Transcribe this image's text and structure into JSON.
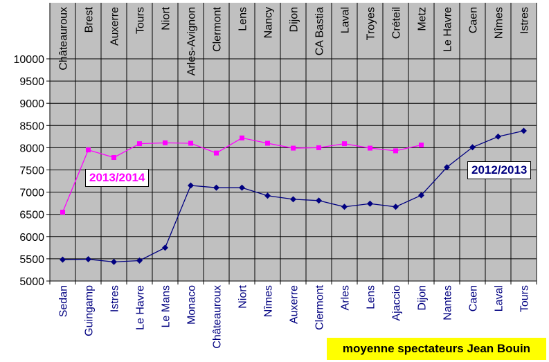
{
  "chart_data": {
    "type": "line",
    "ylim": [
      5000,
      10000
    ],
    "yticks": [
      5000,
      5500,
      6000,
      6500,
      7000,
      7500,
      8000,
      8500,
      9000,
      9500,
      10000
    ],
    "grid": true,
    "plot_bg_color": "#c0c0c0",
    "categories_top": [
      "Châteauroux",
      "Brest",
      "Auxerre",
      "Tours",
      "Niort",
      "Arles-Avignon",
      "Clermont",
      "Lens",
      "Nancy",
      "Dijon",
      "CA Bastia",
      "Laval",
      "Troyes",
      "Créteil",
      "Metz",
      "Le Havre",
      "Caen",
      "Nîmes",
      "Istres"
    ],
    "categories_bottom": [
      "Sedan",
      "Guingamp",
      "Istres",
      "Le Havre",
      "Le Mans",
      "Monaco",
      "Châteauroux",
      "Niort",
      "Nîmes",
      "Auxerre",
      "Clermont",
      "Arles",
      "Lens",
      "Ajaccio",
      "Dijon",
      "Nantes",
      "Caen",
      "Laval",
      "Tours"
    ],
    "series": [
      {
        "name": "2013/2014",
        "color": "#ff00ff",
        "marker": "square",
        "values": [
          6550,
          7950,
          7780,
          8090,
          8110,
          8100,
          7880,
          8220,
          8100,
          7990,
          8000,
          8090,
          7990,
          7930,
          8060,
          null,
          null,
          null,
          null
        ]
      },
      {
        "name": "2012/2013",
        "color": "#000080",
        "marker": "diamond",
        "values": [
          5480,
          5490,
          5430,
          5460,
          5750,
          7150,
          7100,
          7100,
          6920,
          6840,
          6810,
          6670,
          6740,
          6670,
          6930,
          7560,
          8010,
          8250,
          8380
        ]
      }
    ]
  },
  "legend": {
    "s2013_2014": "2013/2014",
    "s2012_2013": "2012/2013"
  },
  "footer_label": "moyenne spectateurs Jean Bouin",
  "colors": {
    "footer_bg": "#ffff00",
    "legend_2013_2014_text": "#ff00ff",
    "legend_2012_2013_text": "#000080"
  }
}
